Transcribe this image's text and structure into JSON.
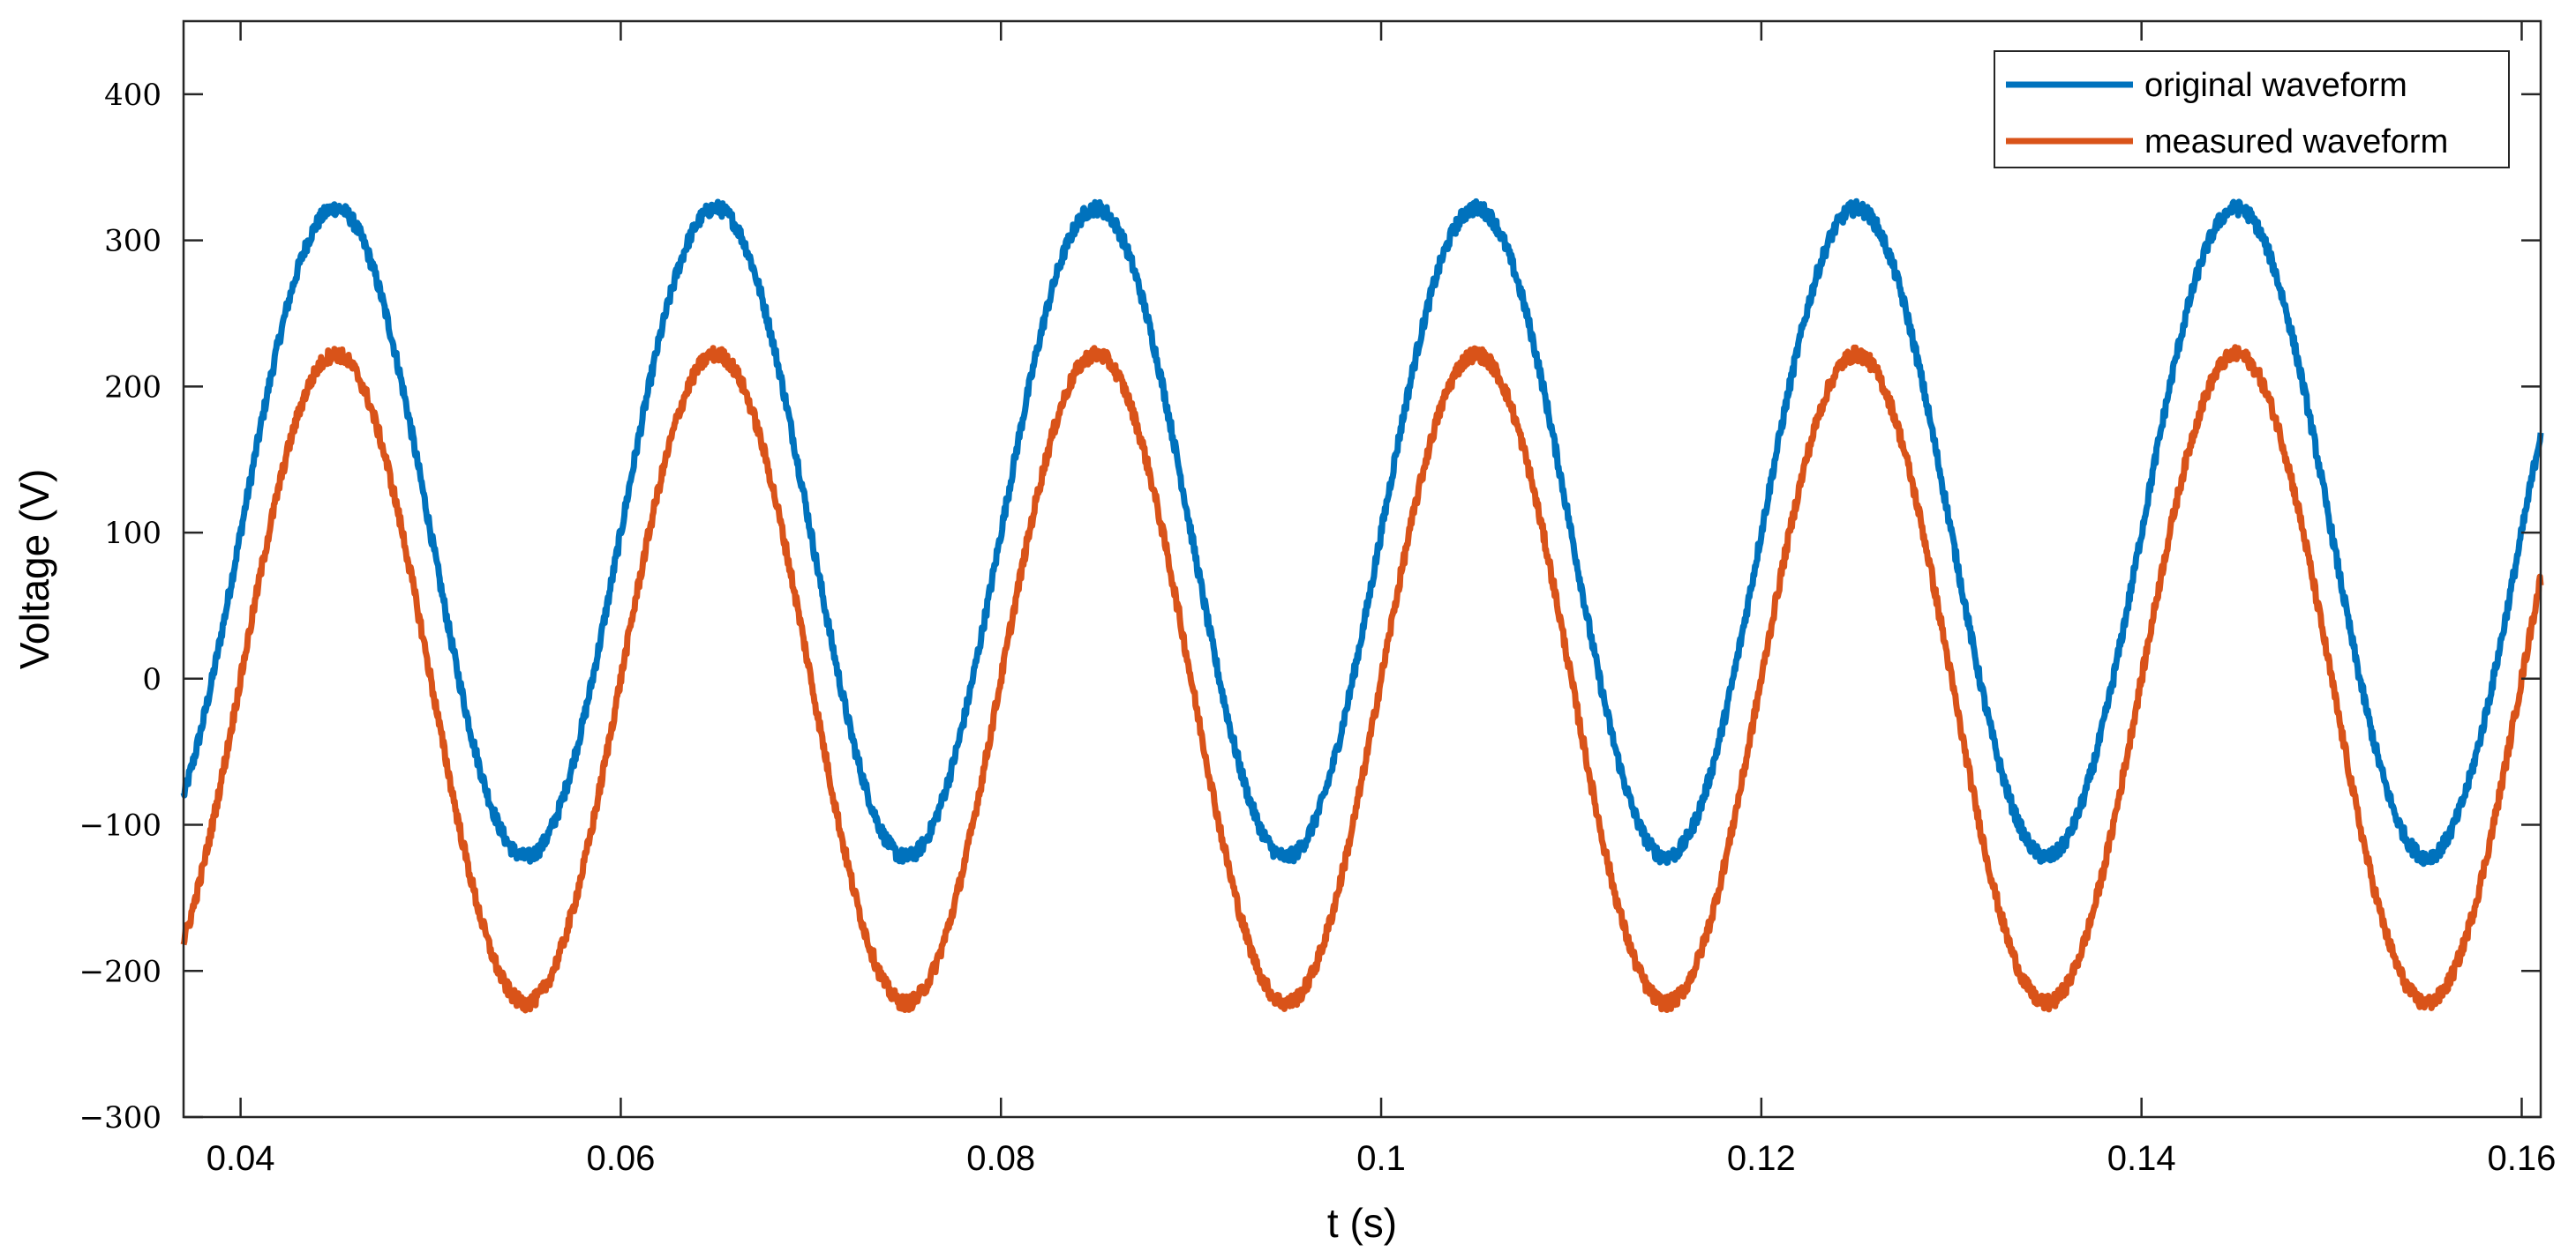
{
  "chart_data": {
    "type": "line",
    "xlabel": "t (s)",
    "ylabel": "Voltage (V)",
    "xlim": [
      0.037,
      0.161
    ],
    "ylim": [
      -300,
      450
    ],
    "x_ticks": [
      0.04,
      0.06,
      0.08,
      0.1,
      0.12,
      0.14,
      0.16
    ],
    "x_tick_labels": [
      "0.04",
      "0.06",
      "0.08",
      "0.1",
      "0.12",
      "0.14",
      "0.16"
    ],
    "y_ticks": [
      -300,
      -200,
      -100,
      0,
      100,
      200,
      300,
      400
    ],
    "y_tick_labels": [
      "−300",
      "−200",
      "−100",
      "0",
      "100",
      "200",
      "300",
      "400"
    ],
    "grid": false,
    "legend_position": "top-right",
    "series": [
      {
        "name": "original waveform",
        "color": "#0072BD",
        "frequency_hz": 50,
        "amplitude_v": 222,
        "offset_v": 100,
        "noise_v": 5,
        "points": [
          [
            0.037,
            -80
          ],
          [
            0.04,
            80
          ],
          [
            0.045,
            322
          ],
          [
            0.05,
            100
          ],
          [
            0.055,
            -122
          ],
          [
            0.06,
            100
          ],
          [
            0.065,
            322
          ],
          [
            0.07,
            100
          ],
          [
            0.075,
            -122
          ],
          [
            0.08,
            100
          ],
          [
            0.085,
            322
          ],
          [
            0.09,
            100
          ],
          [
            0.095,
            -122
          ],
          [
            0.1,
            100
          ],
          [
            0.105,
            322
          ],
          [
            0.11,
            100
          ],
          [
            0.115,
            -122
          ],
          [
            0.12,
            100
          ],
          [
            0.125,
            322
          ],
          [
            0.13,
            100
          ],
          [
            0.135,
            -122
          ],
          [
            0.14,
            100
          ],
          [
            0.145,
            322
          ],
          [
            0.15,
            100
          ],
          [
            0.155,
            -122
          ],
          [
            0.16,
            100
          ],
          [
            0.161,
            152
          ]
        ]
      },
      {
        "name": "measured waveform",
        "color": "#D95319",
        "frequency_hz": 50,
        "amplitude_v": 222,
        "offset_v": 0,
        "noise_v": 5,
        "points": [
          [
            0.037,
            -180
          ],
          [
            0.04,
            -20
          ],
          [
            0.045,
            222
          ],
          [
            0.05,
            0
          ],
          [
            0.055,
            -222
          ],
          [
            0.06,
            0
          ],
          [
            0.065,
            222
          ],
          [
            0.07,
            0
          ],
          [
            0.075,
            -222
          ],
          [
            0.08,
            0
          ],
          [
            0.085,
            222
          ],
          [
            0.09,
            0
          ],
          [
            0.095,
            -222
          ],
          [
            0.1,
            0
          ],
          [
            0.105,
            222
          ],
          [
            0.11,
            0
          ],
          [
            0.115,
            -222
          ],
          [
            0.12,
            0
          ],
          [
            0.125,
            222
          ],
          [
            0.13,
            0
          ],
          [
            0.135,
            -222
          ],
          [
            0.14,
            0
          ],
          [
            0.145,
            222
          ],
          [
            0.15,
            0
          ],
          [
            0.155,
            -222
          ],
          [
            0.16,
            0
          ],
          [
            0.161,
            48
          ]
        ]
      }
    ]
  }
}
